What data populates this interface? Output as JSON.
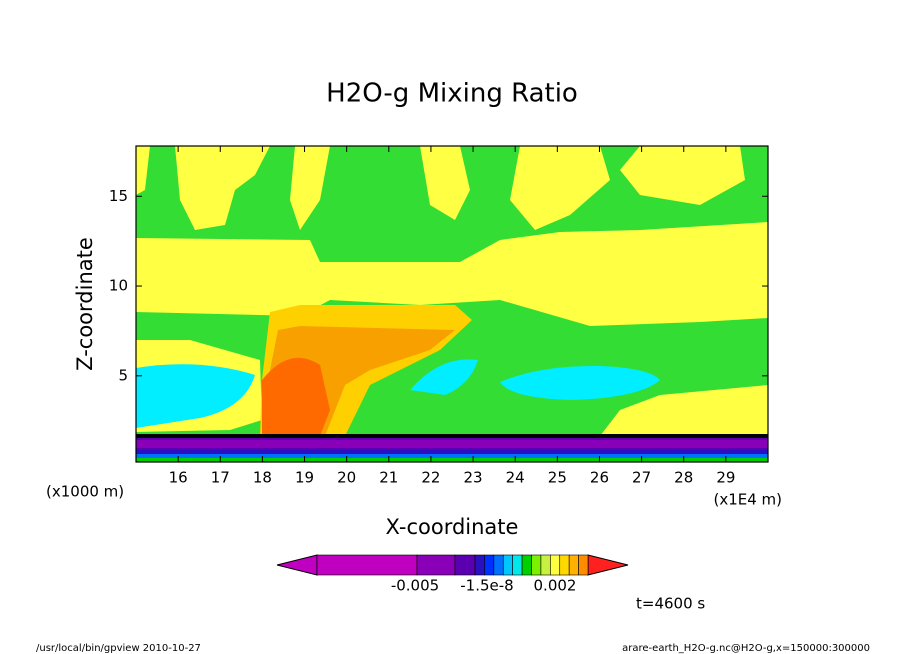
{
  "chart_data": {
    "type": "contour",
    "title": "H2O-g Mixing Ratio",
    "x_label": "X-coordinate",
    "y_label": "Z-coordinate",
    "y_unit": "(x1000 m)",
    "x_unit": "(x1E4 m)",
    "xlim": [
      15,
      30
    ],
    "xticks": [
      16,
      17,
      18,
      19,
      20,
      21,
      22,
      23,
      24,
      25,
      26,
      27,
      28,
      29
    ],
    "ylim": [
      0.2,
      17.8
    ],
    "yticks": [
      5,
      10,
      15
    ],
    "colorbar": {
      "colors": [
        "#c000c0",
        "#c000c0",
        "#8a00b8",
        "#5a00b0",
        "#2a10c0",
        "#0030ff",
        "#0070ff",
        "#00c8ff",
        "#00e8e8",
        "#00d000",
        "#7cf000",
        "#c8f040",
        "#ffff40",
        "#ffd800",
        "#ffb000",
        "#ff8c00",
        "#ff2020"
      ],
      "labels": [
        "-0.005",
        "-1.5e-8",
        "0.002"
      ]
    },
    "time_label": "t=4600 s",
    "footer_left": "/usr/local/bin/gpview  2010-10-27",
    "footer_right": "arare-earth_H2O-g.nc@H2O-g,x=150000:300000"
  }
}
